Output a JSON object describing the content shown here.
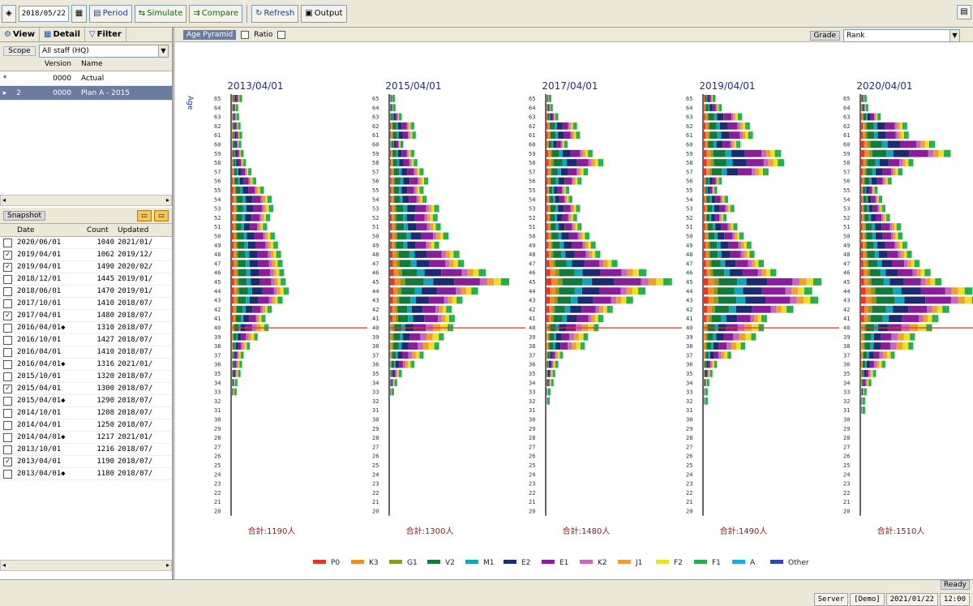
{
  "toolbar": {
    "date_value": "2018/05/22",
    "btn_period": "Period",
    "btn_simulate": "Simulate",
    "btn_compare": "Compare",
    "btn_refresh": "Refresh",
    "btn_output": "Output"
  },
  "left_panel": {
    "tabs": [
      {
        "label": "View"
      },
      {
        "label": "Detail"
      },
      {
        "label": "Filter"
      }
    ],
    "selector_label": "Scope",
    "selector_value": "All staff (HQ)",
    "version_grid": {
      "headers": [
        "Version",
        "Name"
      ],
      "rows": [
        {
          "ind": "*",
          "num": "",
          "version": "0000",
          "name": "Actual",
          "selected": false
        },
        {
          "ind": "▸",
          "num": "2",
          "version": "0000",
          "name": "Plan A - 2015",
          "selected": true
        }
      ]
    },
    "snapshot_label": "Snapshot",
    "snapshot_grid": {
      "headers": [
        "Date",
        "Count",
        "Updated"
      ],
      "rows": [
        {
          "checked": false,
          "date": "2020/06/01",
          "count": "1040",
          "updated": "2021/01/"
        },
        {
          "checked": true,
          "date": "2019/04/01",
          "count": "1062",
          "updated": "2019/12/"
        },
        {
          "checked": true,
          "date": "2019/04/01",
          "count": "1490",
          "updated": "2020/02/"
        },
        {
          "checked": false,
          "date": "2018/12/01",
          "count": "1445",
          "updated": "2019/01/"
        },
        {
          "checked": false,
          "date": "2018/06/01",
          "count": "1470",
          "updated": "2019/01/"
        },
        {
          "checked": false,
          "date": "2017/10/01",
          "count": "1410",
          "updated": "2018/07/"
        },
        {
          "checked": true,
          "date": "2017/04/01",
          "count": "1480",
          "updated": "2018/07/"
        },
        {
          "checked": false,
          "date": "2016/04/01◆",
          "count": "1310",
          "updated": "2018/07/"
        },
        {
          "checked": false,
          "date": "2016/10/01",
          "count": "1427",
          "updated": "2018/07/"
        },
        {
          "checked": false,
          "date": "2016/04/01",
          "count": "1410",
          "updated": "2018/07/"
        },
        {
          "checked": false,
          "date": "2016/04/01◆",
          "count": "1316",
          "updated": "2021/01/"
        },
        {
          "checked": false,
          "date": "2015/10/01",
          "count": "1320",
          "updated": "2018/07/"
        },
        {
          "checked": true,
          "date": "2015/04/01",
          "count": "1300",
          "updated": "2018/07/"
        },
        {
          "checked": false,
          "date": "2015/04/01◆",
          "count": "1290",
          "updated": "2018/07/"
        },
        {
          "checked": false,
          "date": "2014/10/01",
          "count": "1208",
          "updated": "2018/07/"
        },
        {
          "checked": false,
          "date": "2014/04/01",
          "count": "1250",
          "updated": "2018/07/"
        },
        {
          "checked": false,
          "date": "2014/04/01◆",
          "count": "1217",
          "updated": "2021/01/"
        },
        {
          "checked": false,
          "date": "2013/10/01",
          "count": "1216",
          "updated": "2018/07/"
        },
        {
          "checked": true,
          "date": "2013/04/01",
          "count": "1190",
          "updated": "2018/07/"
        },
        {
          "checked": false,
          "date": "2013/04/01◆",
          "count": "1180",
          "updated": "2018/07/"
        }
      ]
    }
  },
  "main_toolbar": {
    "chip": "Age Pyramid",
    "opt1": "Ratio",
    "opt2": "",
    "combo_label": "Grade",
    "combo_value": "Rank"
  },
  "status": {
    "ready": "Ready",
    "cell1": "Server",
    "cell2": "[Demo]",
    "cell3": "2021/01/22",
    "cell4": "12:00"
  },
  "colors": {
    "red_line": "#d23a2a",
    "axis_title": "#1d2f8f",
    "total": "#8b1a1a"
  },
  "chart_data": {
    "type": "bar",
    "orientation": "horizontal",
    "age_axis_label": "Age",
    "age_min": 20,
    "age_max": 65,
    "marker_age": 40,
    "series": [
      {
        "name": "P0",
        "color": "#e8342a"
      },
      {
        "name": "K3",
        "color": "#f08c2a"
      },
      {
        "name": "G1",
        "color": "#8c9a1e"
      },
      {
        "name": "V2",
        "color": "#147a3c"
      },
      {
        "name": "M1",
        "color": "#10a8b8"
      },
      {
        "name": "E2",
        "color": "#1e2a6e"
      },
      {
        "name": "E1",
        "color": "#8a1e9a"
      },
      {
        "name": "K2",
        "color": "#c866c0"
      },
      {
        "name": "J1",
        "color": "#f0a030"
      },
      {
        "name": "F2",
        "color": "#eee024"
      },
      {
        "name": "F1",
        "color": "#22b04a"
      },
      {
        "name": "A",
        "color": "#12b0d8"
      },
      {
        "name": "Other",
        "color": "#2a4ab0"
      }
    ],
    "panels": [
      {
        "date": "2013/04/01",
        "total": "合計:1190人"
      },
      {
        "date": "2015/04/01",
        "total": "合計:1300人"
      },
      {
        "date": "2017/04/01",
        "total": "合計:1480人"
      },
      {
        "date": "2019/04/01",
        "total": "合計:1490人"
      },
      {
        "date": "2020/04/01",
        "total": "合計:1510人"
      }
    ],
    "totals_by_age": [
      [
        10,
        5,
        6,
        8,
        10,
        9,
        12,
        15,
        22,
        28,
        38,
        48,
        50,
        46,
        42,
        52,
        56,
        60,
        62,
        64,
        66,
        70,
        62,
        48,
        40,
        44,
        30,
        20,
        12,
        10,
        8,
        4,
        3,
        0,
        0,
        0,
        0,
        0,
        0,
        0,
        0,
        0,
        0,
        0,
        0,
        0
      ],
      [
        3,
        4,
        12,
        28,
        30,
        14,
        28,
        32,
        40,
        46,
        40,
        44,
        60,
        58,
        62,
        72,
        60,
        86,
        92,
        120,
        150,
        110,
        90,
        76,
        80,
        78,
        66,
        60,
        40,
        28,
        12,
        6,
        2,
        0,
        0,
        0,
        0,
        0,
        0,
        0,
        0,
        0,
        0,
        0,
        0,
        0
      ],
      [
        3,
        5,
        12,
        36,
        40,
        24,
        56,
        70,
        50,
        42,
        26,
        30,
        40,
        36,
        42,
        52,
        60,
        66,
        88,
        125,
        158,
        124,
        108,
        82,
        70,
        64,
        50,
        46,
        18,
        12,
        8,
        6,
        2,
        1,
        0,
        0,
        0,
        0,
        0,
        0,
        0,
        0,
        0,
        0,
        0,
        0
      ],
      [
        12,
        20,
        46,
        56,
        60,
        44,
        96,
        100,
        80,
        20,
        14,
        28,
        36,
        26,
        40,
        48,
        58,
        62,
        74,
        90,
        148,
        136,
        144,
        112,
        78,
        74,
        64,
        50,
        32,
        14,
        8,
        4,
        2,
        2,
        0,
        0,
        0,
        0,
        0,
        0,
        0,
        0,
        0,
        0,
        0,
        0
      ],
      [
        4,
        6,
        22,
        56,
        58,
        92,
        112,
        64,
        50,
        36,
        18,
        24,
        28,
        34,
        48,
        50,
        56,
        62,
        72,
        86,
        100,
        140,
        150,
        110,
        96,
        88,
        66,
        64,
        40,
        28,
        16,
        10,
        4,
        2,
        2,
        0,
        0,
        0,
        0,
        0,
        0,
        0,
        0,
        0,
        0,
        0
      ]
    ]
  }
}
